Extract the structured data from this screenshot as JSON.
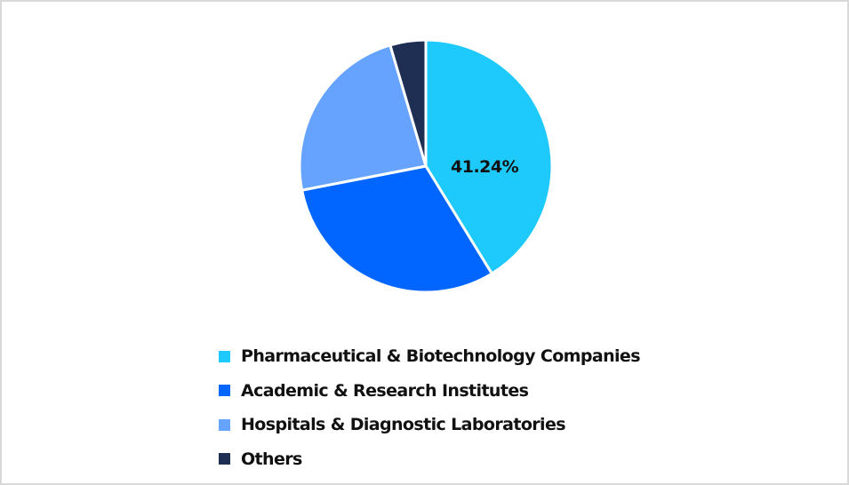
{
  "chart_data": {
    "type": "pie",
    "title": "",
    "categories": [
      "Pharmaceutical & Biotechnology Companies",
      "Academic & Research Institutes",
      "Hospitals & Diagnostic Laboratories",
      "Others"
    ],
    "values": [
      41.24,
      30.7,
      23.5,
      4.56
    ],
    "colors": [
      "#1ec9fb",
      "#0066ff",
      "#66a3ff",
      "#1f2f54"
    ],
    "data_labels": [
      "41.24%",
      "",
      "",
      ""
    ],
    "start_angle_deg": 0,
    "direction": "clockwise",
    "legend_position": "bottom"
  },
  "pie": {
    "label_primary": "41.24%"
  },
  "legend": {
    "items": [
      {
        "label": "Pharmaceutical & Biotechnology Companies",
        "color": "#1ec9fb"
      },
      {
        "label": "Academic & Research Institutes",
        "color": "#0066ff"
      },
      {
        "label": "Hospitals & Diagnostic Laboratories",
        "color": "#66a3ff"
      },
      {
        "label": "Others",
        "color": "#1f2f54"
      }
    ]
  }
}
